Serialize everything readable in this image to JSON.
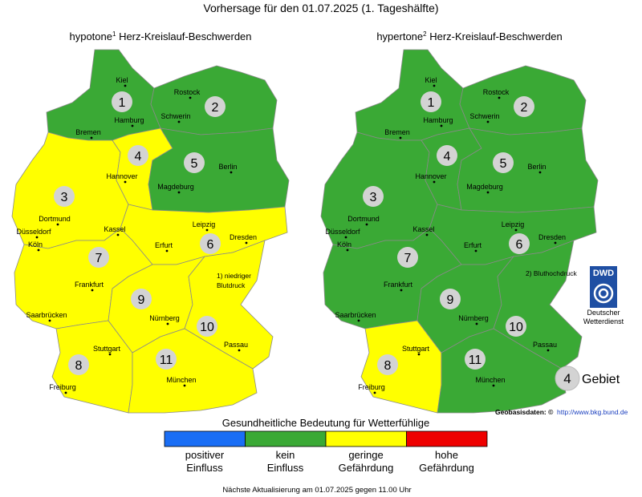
{
  "title": "Vorhersage für den 01.07.2025 (1. Tageshälfte)",
  "maps": [
    {
      "label": "hypotone",
      "superscript": "1",
      "subtitle": "Herz-Kreislauf-Beschwerden",
      "note": [
        "1) niedriger",
        "Blutdruck"
      ],
      "regions": [
        {
          "number": 1,
          "color": "#3aa935"
        },
        {
          "number": 2,
          "color": "#3aa935"
        },
        {
          "number": 3,
          "color": "#ffff00"
        },
        {
          "number": 4,
          "color": "#ffff00"
        },
        {
          "number": 5,
          "color": "#3aa935"
        },
        {
          "number": 6,
          "color": "#ffff00"
        },
        {
          "number": 7,
          "color": "#ffff00"
        },
        {
          "number": 8,
          "color": "#ffff00"
        },
        {
          "number": 9,
          "color": "#ffff00"
        },
        {
          "number": 10,
          "color": "#ffff00"
        },
        {
          "number": 11,
          "color": "#ffff00"
        }
      ]
    },
    {
      "label": "hypertone",
      "superscript": "2",
      "subtitle": "Herz-Kreislauf-Beschwerden",
      "note": [
        "2) Bluthochdruck"
      ],
      "regions": [
        {
          "number": 1,
          "color": "#3aa935"
        },
        {
          "number": 2,
          "color": "#3aa935"
        },
        {
          "number": 3,
          "color": "#3aa935"
        },
        {
          "number": 4,
          "color": "#3aa935"
        },
        {
          "number": 5,
          "color": "#3aa935"
        },
        {
          "number": 6,
          "color": "#3aa935"
        },
        {
          "number": 7,
          "color": "#3aa935"
        },
        {
          "number": 8,
          "color": "#ffff00"
        },
        {
          "number": 9,
          "color": "#3aa935"
        },
        {
          "number": 10,
          "color": "#3aa935"
        },
        {
          "number": 11,
          "color": "#3aa935"
        }
      ]
    }
  ],
  "cities": [
    "Kiel",
    "Rostock",
    "Hamburg",
    "Schwerin",
    "Bremen",
    "Hannover",
    "Berlin",
    "Magdeburg",
    "Dortmund",
    "Düsseldorf",
    "Köln",
    "Kassel",
    "Leipzig",
    "Dresden",
    "Erfurt",
    "Frankfurt",
    "Saarbrücken",
    "Nürnberg",
    "Passau",
    "Stuttgart",
    "Freiburg",
    "München"
  ],
  "logo": {
    "abbr": "DWD",
    "name": [
      "Deutscher",
      "Wetterdienst"
    ]
  },
  "region_legend": {
    "number": 4,
    "label": "Gebiet"
  },
  "source": {
    "label": "Geobasisdaten: ©",
    "link": "http://www.bkg.bund.de"
  },
  "scale": {
    "title": "Gesundheitliche Bedeutung für Wetterfühlige",
    "items": [
      {
        "color": "#1a6ef5",
        "label": [
          "positiver",
          "Einfluss"
        ]
      },
      {
        "color": "#3aa935",
        "label": [
          "kein",
          "Einfluss"
        ]
      },
      {
        "color": "#ffff00",
        "label": [
          "geringe",
          "Gefährdung"
        ]
      },
      {
        "color": "#ee0000",
        "label": [
          "hohe",
          "Gefährdung"
        ]
      }
    ]
  },
  "footer": "Nächste Aktualisierung am 01.07.2025 gegen 11.00 Uhr"
}
